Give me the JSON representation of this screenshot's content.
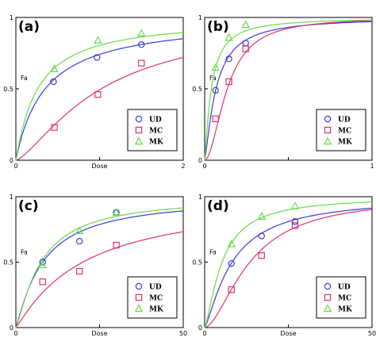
{
  "chart_data": [
    {
      "panel_label": "(a)",
      "type": "line",
      "xlabel": "Dose",
      "ylabel": "Fa",
      "xlim": [
        0,
        2
      ],
      "ylim": [
        0,
        1
      ],
      "xticks": [
        "0",
        "",
        "2"
      ],
      "yticks": [
        "0",
        "0.5",
        "1"
      ],
      "legend_position": "bottom-right",
      "series": [
        {
          "name": "UD",
          "color": "#3b3bd6",
          "marker": "circle",
          "points": [
            [
              0.45,
              0.55
            ],
            [
              0.97,
              0.72
            ],
            [
              1.5,
              0.81
            ]
          ],
          "curve": {
            "dm": 0.35,
            "m": 1.0
          }
        },
        {
          "name": "MC",
          "color": "#e0306a",
          "marker": "square",
          "points": [
            [
              0.46,
              0.23
            ],
            [
              0.98,
              0.46
            ],
            [
              1.5,
              0.68
            ]
          ],
          "curve": {
            "dm": 1.02,
            "m": 1.4
          }
        },
        {
          "name": "MK",
          "color": "#66dd44",
          "marker": "triangle",
          "points": [
            [
              0.46,
              0.64
            ],
            [
              0.98,
              0.84
            ],
            [
              1.5,
              0.89
            ]
          ],
          "curve": {
            "dm": 0.26,
            "m": 1.05
          }
        }
      ]
    },
    {
      "panel_label": "(b)",
      "type": "line",
      "xlabel": "",
      "ylabel": "Fa",
      "xlim": [
        0,
        1
      ],
      "ylim": [
        0,
        1
      ],
      "xticks": [
        "0",
        "",
        "1"
      ],
      "yticks": [
        "0",
        "0.5",
        "1"
      ],
      "legend_position": "bottom-right",
      "series": [
        {
          "name": "UD",
          "color": "#3b3bd6",
          "marker": "circle",
          "points": [
            [
              0.065,
              0.49
            ],
            [
              0.145,
              0.71
            ],
            [
              0.245,
              0.82
            ]
          ],
          "curve": {
            "dm": 0.068,
            "m": 1.3
          }
        },
        {
          "name": "MC",
          "color": "#e0306a",
          "marker": "square",
          "points": [
            [
              0.065,
              0.29
            ],
            [
              0.145,
              0.55
            ],
            [
              0.245,
              0.78
            ]
          ],
          "curve": {
            "dm": 0.135,
            "m": 1.9
          }
        },
        {
          "name": "MK",
          "color": "#66dd44",
          "marker": "triangle",
          "points": [
            [
              0.065,
              0.65
            ],
            [
              0.145,
              0.86
            ],
            [
              0.245,
              0.95
            ]
          ],
          "curve": {
            "dm": 0.04,
            "m": 1.25
          }
        }
      ]
    },
    {
      "panel_label": "(c)",
      "type": "line",
      "xlabel": "Dose",
      "ylabel": "Fa",
      "xlim": [
        0,
        50
      ],
      "ylim": [
        0,
        1
      ],
      "xticks": [
        "0",
        "",
        "50"
      ],
      "yticks": [
        "0",
        "0.5",
        "1"
      ],
      "legend_position": "bottom-right",
      "series": [
        {
          "name": "UD",
          "color": "#3b3bd6",
          "marker": "circle",
          "points": [
            [
              8,
              0.5
            ],
            [
              19,
              0.66
            ],
            [
              30,
              0.88
            ]
          ],
          "curve": {
            "dm": 8.0,
            "m": 1.15
          }
        },
        {
          "name": "MC",
          "color": "#e0306a",
          "marker": "square",
          "points": [
            [
              8,
              0.35
            ],
            [
              19,
              0.43
            ],
            [
              30,
              0.63
            ]
          ],
          "curve": {
            "dm": 20.0,
            "m": 1.1
          }
        },
        {
          "name": "MK",
          "color": "#66dd44",
          "marker": "triangle",
          "points": [
            [
              8,
              0.48
            ],
            [
              19,
              0.74
            ],
            [
              30,
              0.88
            ]
          ],
          "curve": {
            "dm": 7.5,
            "m": 1.25
          }
        }
      ]
    },
    {
      "panel_label": "(d)",
      "type": "line",
      "xlabel": "Dose",
      "ylabel": "Fa",
      "xlim": [
        0,
        50
      ],
      "ylim": [
        0,
        1
      ],
      "xticks": [
        "0",
        "",
        "50"
      ],
      "yticks": [
        "0",
        "0.5",
        "1"
      ],
      "legend_position": "bottom-right",
      "series": [
        {
          "name": "UD",
          "color": "#3b3bd6",
          "marker": "circle",
          "points": [
            [
              8,
              0.49
            ],
            [
              17,
              0.7
            ],
            [
              27,
              0.81
            ]
          ],
          "curve": {
            "dm": 8.2,
            "m": 1.3
          }
        },
        {
          "name": "MC",
          "color": "#e0306a",
          "marker": "square",
          "points": [
            [
              8,
              0.29
            ],
            [
              17,
              0.55
            ],
            [
              27,
              0.78
            ]
          ],
          "curve": {
            "dm": 13.5,
            "m": 1.7
          }
        },
        {
          "name": "MK",
          "color": "#66dd44",
          "marker": "triangle",
          "points": [
            [
              8,
              0.64
            ],
            [
              17,
              0.85
            ],
            [
              27,
              0.93
            ]
          ],
          "curve": {
            "dm": 5.2,
            "m": 1.4
          }
        }
      ]
    }
  ]
}
